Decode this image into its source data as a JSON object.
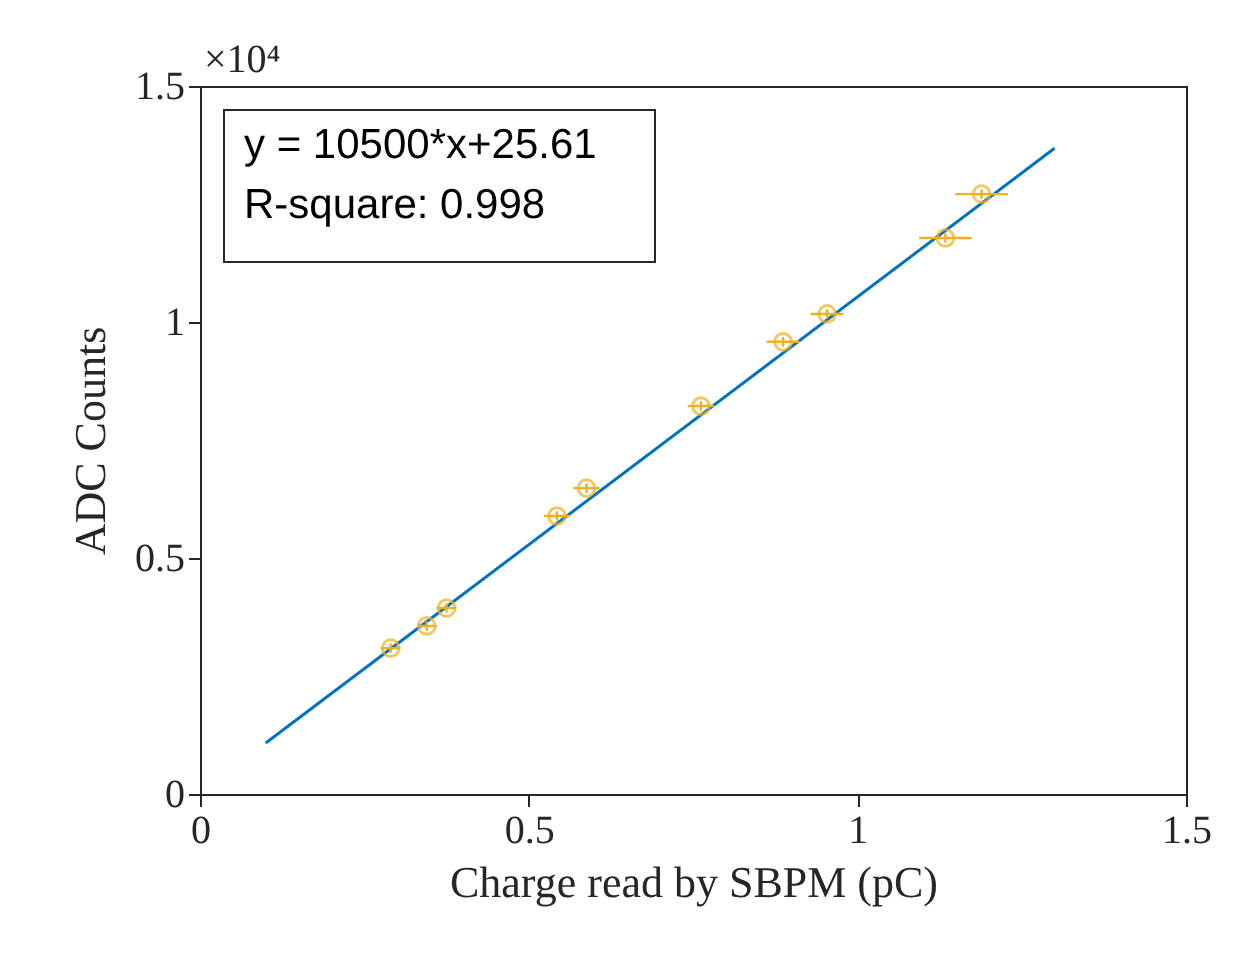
{
  "chart_data": {
    "type": "scatter",
    "xlabel": "Charge read by SBPM (pC)",
    "ylabel": "ADC Counts",
    "xlim": [
      0,
      1.5
    ],
    "xticks": [
      0,
      0.5,
      1,
      1.5
    ],
    "ylim": [
      0,
      1.5
    ],
    "yticks": [
      0,
      0.5,
      1,
      1.5
    ],
    "annotations": [
      "×10⁴",
      "y = 10500*x+25.61",
      "R-square: 0.998"
    ],
    "series": [
      {
        "type": "line",
        "color": "#0072bd",
        "x": [
          0.1,
          1.3
        ],
        "values": [
          0.108,
          1.368
        ],
        "marker": "none"
      },
      {
        "color": "#edb120",
        "marker": "circle",
        "x": [
          0.29,
          0.345,
          0.375,
          0.543,
          0.588,
          0.762,
          0.887,
          0.954,
          1.134,
          1.189
        ],
        "values": [
          0.309,
          0.356,
          0.394,
          0.589,
          0.648,
          0.822,
          0.958,
          1.017,
          1.178,
          1.271
        ],
        "xerrors": [
          0.015,
          0.015,
          0.015,
          0.02,
          0.02,
          0.02,
          0.025,
          0.025,
          0.04,
          0.04
        ],
        "errors": [
          0.01,
          0.01,
          0.01,
          0.01,
          0.01,
          0.01,
          0.01,
          0.01,
          0.01,
          0.01
        ]
      }
    ]
  }
}
